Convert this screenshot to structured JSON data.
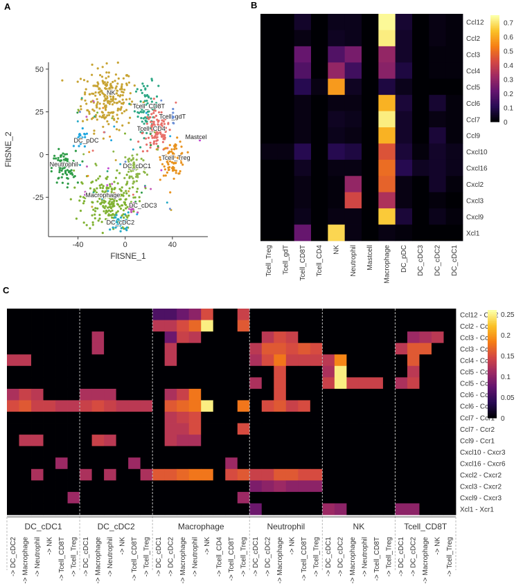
{
  "panels": [
    "A",
    "B",
    "C"
  ],
  "chart_data": [
    {
      "id": "A",
      "type": "scatter",
      "title": "",
      "xlabel": "FltSNE_1",
      "ylabel": "FltSNE_2",
      "xlim": [
        -65,
        70
      ],
      "ylim": [
        -48,
        54
      ],
      "xticks": [
        -40,
        0,
        40
      ],
      "yticks": [
        -25,
        0,
        25,
        50
      ],
      "clusters": [
        {
          "name": "NK",
          "color": "#c8a434",
          "center": [
            -15,
            33
          ],
          "spread": [
            11,
            9
          ],
          "n": 230,
          "label_at": [
            -12,
            35
          ]
        },
        {
          "name": "Tcell_CD8T",
          "color": "#2ea886",
          "center": [
            18,
            28
          ],
          "spread": [
            5,
            7
          ],
          "n": 70,
          "label_at": [
            20,
            27
          ]
        },
        {
          "name": "Tcell_gdT",
          "color": "#6a8fd6",
          "center": [
            40,
            22
          ],
          "spread": [
            2,
            2
          ],
          "n": 12,
          "label_at": [
            40,
            21
          ]
        },
        {
          "name": "Tcell_CD4",
          "color": "#e8706a",
          "center": [
            27,
            13
          ],
          "spread": [
            6,
            6
          ],
          "n": 110,
          "label_at": [
            22,
            14
          ]
        },
        {
          "name": "Mastcel",
          "color": "#c24bd2",
          "center": [
            63,
            10
          ],
          "spread": [
            1,
            1
          ],
          "n": 4,
          "label_at": [
            60,
            9
          ]
        },
        {
          "name": "DC_pDC",
          "color": "#1fa6e0",
          "center": [
            -37,
            8
          ],
          "spread": [
            3,
            3
          ],
          "n": 18,
          "label_at": [
            -33,
            7
          ]
        },
        {
          "name": "Tcell_Treg",
          "color": "#e8921e",
          "center": [
            41,
            -2
          ],
          "spread": [
            5,
            5
          ],
          "n": 85,
          "label_at": [
            43,
            -3
          ]
        },
        {
          "name": "Neutrophil",
          "color": "#2f9c48",
          "center": [
            -52,
            -8
          ],
          "spread": [
            5,
            5
          ],
          "n": 80,
          "label_at": [
            -52,
            -7
          ]
        },
        {
          "name": "DC_cDC1",
          "color": "#8fb84a",
          "center": [
            8,
            -8
          ],
          "spread": [
            5,
            6
          ],
          "n": 60,
          "label_at": [
            10,
            -8
          ]
        },
        {
          "name": "Macrophage",
          "color": "#80b232",
          "center": [
            -14,
            -28
          ],
          "spread": [
            11,
            8
          ],
          "n": 210,
          "label_at": [
            -19,
            -25
          ]
        },
        {
          "name": "DC_cDC3",
          "color": "#c45bb8",
          "center": [
            6,
            -32
          ],
          "spread": [
            2,
            2
          ],
          "n": 10,
          "label_at": [
            15,
            -31
          ]
        },
        {
          "name": "DC_cDC2",
          "color": "#24a9c6",
          "center": [
            -4,
            -40
          ],
          "spread": [
            4,
            3
          ],
          "n": 35,
          "label_at": [
            -4,
            -41
          ]
        }
      ]
    },
    {
      "id": "B",
      "type": "heatmap",
      "rows": [
        "Ccl12",
        "Ccl2",
        "Ccl3",
        "Ccl4",
        "Ccl5",
        "Ccl6",
        "Ccl7",
        "Ccl9",
        "Cxcl10",
        "Cxcl16",
        "Cxcl2",
        "Cxcl3",
        "Cxcl9",
        "Xcl1"
      ],
      "cols": [
        "Tcell_Treg",
        "Tcell_gdT",
        "Tcell_CD8T",
        "Tcell_CD4",
        "NK",
        "Neutrophil",
        "Mastcell",
        "Macrophage",
        "DC_pDC",
        "DC_cDC3",
        "DC_cDC2",
        "DC_cDC1"
      ],
      "values": [
        [
          0,
          0,
          0.05,
          0,
          0.03,
          0.03,
          0,
          0.74,
          0.06,
          0,
          0.02,
          0.01
        ],
        [
          0,
          0,
          0.02,
          0,
          0.04,
          0.03,
          0,
          0.72,
          0.05,
          0,
          0.02,
          0.01
        ],
        [
          0,
          0,
          0.22,
          0,
          0.18,
          0.25,
          0,
          0.3,
          0.05,
          0,
          0.01,
          0.01
        ],
        [
          0,
          0,
          0.18,
          0,
          0.3,
          0.15,
          0,
          0.28,
          0.08,
          0,
          0.01,
          0.01
        ],
        [
          0,
          0,
          0.1,
          0.02,
          0.58,
          0.04,
          0,
          0.08,
          0.03,
          0,
          0,
          0
        ],
        [
          0,
          0,
          0.02,
          0,
          0.02,
          0.02,
          0,
          0.62,
          0.07,
          0,
          0.06,
          0.01
        ],
        [
          0,
          0,
          0.02,
          0,
          0.04,
          0.03,
          0,
          0.72,
          0.05,
          0,
          0.02,
          0.01
        ],
        [
          0,
          0,
          0.02,
          0,
          0.03,
          0.02,
          0,
          0.62,
          0.05,
          0,
          0.07,
          0.01
        ],
        [
          0.02,
          0.02,
          0.1,
          0,
          0.1,
          0.08,
          0,
          0.45,
          0.07,
          0.01,
          0.05,
          0.03
        ],
        [
          0,
          0,
          0.04,
          0,
          0.02,
          0.02,
          0,
          0.5,
          0.1,
          0.04,
          0.05,
          0.03
        ],
        [
          0,
          0,
          0.02,
          0,
          0.01,
          0.3,
          0,
          0.48,
          0.02,
          0,
          0.05,
          0.01
        ],
        [
          0,
          0,
          0.02,
          0,
          0.01,
          0.42,
          0,
          0.35,
          0.02,
          0,
          0.01,
          0
        ],
        [
          0,
          0,
          0.03,
          0,
          0.02,
          0.02,
          0,
          0.66,
          0.07,
          0,
          0.03,
          0.01
        ],
        [
          0,
          0,
          0.22,
          0,
          0.68,
          0.02,
          0,
          0.02,
          0.01,
          0,
          0,
          0
        ]
      ],
      "legend_min": 0,
      "legend_max": 0.75,
      "legend_ticks": [
        0,
        0.1,
        0.2,
        0.3,
        0.4,
        0.5,
        0.6,
        0.7
      ]
    },
    {
      "id": "C",
      "type": "heatmap",
      "rows": [
        "Ccl12 - Ccr2",
        "Ccl2 - Ccr2",
        "Ccl3 - Ccr1",
        "Ccl3 - Ccr5",
        "Ccl4 - Ccr5",
        "Ccl5 - Ccr1",
        "Ccl5 - Ccr5",
        "Ccl6 - Ccr1",
        "Ccl6 - Ccr2",
        "Ccl7 - Ccr1",
        "Ccl7 - Ccr2",
        "Ccl9 - Ccr1",
        "Cxcl10 - Cxcr3",
        "Cxcl16 - Cxcr6",
        "Cxcl2 - Cxcr2",
        "Cxcl3 - Cxcr2",
        "Cxcl9 - Cxcr3",
        "Xcl1 - Xcr1"
      ],
      "groups": [
        {
          "name": "DC_cDC1",
          "cols": [
            "-> DC_cDC2",
            "-> Macrophage",
            "-> Neutrophil",
            "-> NK",
            "-> Tcell_CD8T",
            "-> Tcell_Treg"
          ]
        },
        {
          "name": "DC_cDC2",
          "cols": [
            "-> DC_cDC1",
            "-> Macrophage",
            "-> Neutrophil",
            "-> NK",
            "-> Tcell_CD8T",
            "-> Tcell_Treg"
          ]
        },
        {
          "name": "Macrophage",
          "cols": [
            "-> DC_cDC1",
            "-> DC_cDC2",
            "-> Macrophage",
            "-> Neutrophil",
            "-> NK",
            "-> Tcell_CD4",
            "-> Tcell_CD8T",
            "-> Tcell_Treg"
          ]
        },
        {
          "name": "Neutrophil",
          "cols": [
            "-> DC_cDC1",
            "-> DC_cDC2",
            "-> Macrophage",
            "-> NK",
            "-> Tcell_CD8T",
            "-> Tcell_Treg"
          ]
        },
        {
          "name": "NK",
          "cols": [
            "-> DC_cDC1",
            "-> DC_cDC2",
            "-> Macrophage",
            "-> Neutrophil",
            "-> Tcell_CD8T",
            "-> Tcell_Treg"
          ]
        },
        {
          "name": "Tcell_CD8T",
          "cols": [
            "-> DC_cDC1",
            "-> DC_cDC2",
            "-> Macrophage",
            "-> NK",
            "-> Tcell_Treg"
          ]
        }
      ],
      "values": [
        [
          0,
          0,
          0,
          0,
          0,
          0,
          0,
          0,
          0,
          0,
          0,
          0,
          0.06,
          0.06,
          0.08,
          0.1,
          0.15,
          0,
          0,
          0.14,
          0,
          0,
          0,
          0,
          0,
          0,
          0,
          0,
          0,
          0,
          0,
          0,
          0,
          0,
          0,
          0,
          0
        ],
        [
          0,
          0,
          0,
          0,
          0,
          0,
          0,
          0,
          0,
          0,
          0,
          0,
          0.13,
          0.13,
          0.15,
          0.17,
          0.25,
          0,
          0,
          0.16,
          0,
          0,
          0,
          0,
          0,
          0,
          0,
          0,
          0,
          0,
          0,
          0,
          0,
          0,
          0,
          0,
          0
        ],
        [
          0,
          0,
          0,
          0,
          0,
          0,
          0,
          0.12,
          0,
          0,
          0,
          0,
          0,
          0.08,
          0.14,
          0.13,
          0,
          0,
          0,
          0,
          0,
          0.13,
          0.15,
          0.14,
          0,
          0,
          0,
          0,
          0,
          0,
          0,
          0,
          0,
          0.11,
          0.12,
          0.13,
          0
        ],
        [
          0,
          0,
          0,
          0,
          0,
          0,
          0,
          0.12,
          0,
          0,
          0,
          0,
          0,
          0.13,
          0,
          0,
          0,
          0,
          0,
          0,
          0.13,
          0.16,
          0.16,
          0.15,
          0.16,
          0.15,
          0,
          0,
          0,
          0,
          0,
          0,
          0.13,
          0.16,
          0.16,
          0,
          0
        ],
        [
          0.13,
          0.13,
          0,
          0,
          0,
          0,
          0,
          0,
          0,
          0,
          0,
          0,
          0,
          0.13,
          0,
          0,
          0,
          0,
          0,
          0,
          0.12,
          0.15,
          0.18,
          0.14,
          0.14,
          0.14,
          0.13,
          0.19,
          0,
          0,
          0,
          0,
          0,
          0.16,
          0,
          0,
          0
        ],
        [
          0,
          0,
          0,
          0,
          0,
          0,
          0,
          0,
          0,
          0,
          0,
          0,
          0,
          0,
          0,
          0,
          0,
          0,
          0,
          0,
          0,
          0,
          0.15,
          0,
          0,
          0,
          0.12,
          0.25,
          0,
          0,
          0,
          0,
          0,
          0.13,
          0,
          0,
          0
        ],
        [
          0,
          0,
          0,
          0,
          0,
          0,
          0,
          0,
          0,
          0,
          0,
          0,
          0,
          0,
          0,
          0,
          0,
          0,
          0,
          0,
          0.12,
          0,
          0.15,
          0,
          0,
          0,
          0.14,
          0.25,
          0.14,
          0.14,
          0.14,
          0,
          0.12,
          0.14,
          0,
          0,
          0
        ],
        [
          0.12,
          0.14,
          0.13,
          0,
          0,
          0,
          0.12,
          0.12,
          0.12,
          0,
          0,
          0,
          0,
          0.12,
          0.14,
          0.18,
          0,
          0,
          0,
          0,
          0,
          0,
          0.15,
          0,
          0,
          0,
          0,
          0,
          0,
          0,
          0,
          0,
          0,
          0,
          0,
          0,
          0
        ],
        [
          0.15,
          0.16,
          0.14,
          0.14,
          0.13,
          0.13,
          0.14,
          0.15,
          0.14,
          0.13,
          0.13,
          0.13,
          0,
          0.16,
          0.17,
          0.18,
          0.25,
          0,
          0,
          0.18,
          0,
          0.15,
          0.16,
          0.14,
          0.15,
          0,
          0,
          0,
          0,
          0,
          0,
          0,
          0,
          0,
          0,
          0,
          0
        ],
        [
          0,
          0,
          0,
          0,
          0,
          0,
          0,
          0,
          0,
          0,
          0,
          0,
          0,
          0.13,
          0.14,
          0.15,
          0,
          0,
          0,
          0,
          0,
          0,
          0,
          0,
          0,
          0,
          0,
          0,
          0,
          0,
          0,
          0,
          0,
          0,
          0,
          0,
          0
        ],
        [
          0,
          0,
          0,
          0,
          0,
          0,
          0,
          0,
          0,
          0,
          0,
          0,
          0,
          0.13,
          0.13,
          0.15,
          0,
          0,
          0,
          0.15,
          0,
          0,
          0,
          0,
          0,
          0,
          0,
          0,
          0,
          0,
          0,
          0,
          0,
          0,
          0,
          0,
          0
        ],
        [
          0,
          0.13,
          0.13,
          0,
          0,
          0,
          0,
          0.14,
          0.13,
          0,
          0,
          0,
          0,
          0.13,
          0.12,
          0.12,
          0,
          0,
          0,
          0,
          0,
          0,
          0,
          0,
          0,
          0,
          0,
          0,
          0,
          0,
          0,
          0,
          0,
          0,
          0,
          0,
          0
        ],
        [
          0,
          0,
          0,
          0,
          0,
          0,
          0,
          0,
          0,
          0,
          0,
          0,
          0,
          0,
          0,
          0,
          0,
          0,
          0,
          0,
          0,
          0,
          0,
          0,
          0,
          0,
          0,
          0,
          0,
          0,
          0,
          0,
          0,
          0,
          0,
          0,
          0
        ],
        [
          0,
          0,
          0,
          0,
          0.11,
          0,
          0,
          0,
          0,
          0,
          0.11,
          0,
          0,
          0,
          0,
          0,
          0,
          0,
          0.11,
          0,
          0,
          0,
          0,
          0,
          0,
          0,
          0,
          0,
          0,
          0,
          0,
          0,
          0,
          0,
          0,
          0,
          0
        ],
        [
          0,
          0,
          0.12,
          0,
          0,
          0,
          0.12,
          0,
          0.12,
          0,
          0,
          0.12,
          0.16,
          0.16,
          0.17,
          0.18,
          0.18,
          0,
          0.15,
          0.16,
          0.14,
          0.14,
          0.16,
          0.16,
          0.15,
          0.15,
          0,
          0,
          0,
          0,
          0,
          0,
          0,
          0,
          0,
          0,
          0
        ],
        [
          0,
          0,
          0,
          0,
          0,
          0,
          0,
          0,
          0,
          0,
          0,
          0,
          0,
          0,
          0,
          0,
          0,
          0,
          0,
          0,
          0.09,
          0.1,
          0.11,
          0.1,
          0.1,
          0.1,
          0,
          0,
          0,
          0,
          0,
          0,
          0,
          0,
          0,
          0,
          0
        ],
        [
          0,
          0,
          0,
          0,
          0,
          0.11,
          0,
          0,
          0,
          0,
          0,
          0,
          0,
          0,
          0,
          0,
          0,
          0,
          0,
          0.11,
          0,
          0,
          0,
          0,
          0,
          0,
          0,
          0,
          0,
          0,
          0,
          0,
          0,
          0,
          0,
          0,
          0
        ],
        [
          0,
          0,
          0,
          0,
          0,
          0,
          0,
          0,
          0,
          0,
          0,
          0,
          0,
          0,
          0,
          0,
          0,
          0,
          0,
          0,
          0.08,
          0,
          0,
          0,
          0,
          0,
          0.11,
          0.1,
          0,
          0,
          0,
          0,
          0.1,
          0.1,
          0,
          0,
          0
        ]
      ],
      "legend_min": 0,
      "legend_max": 0.26,
      "legend_ticks": [
        0,
        0.05,
        0.1,
        0.15,
        0.2,
        0.25
      ]
    }
  ]
}
